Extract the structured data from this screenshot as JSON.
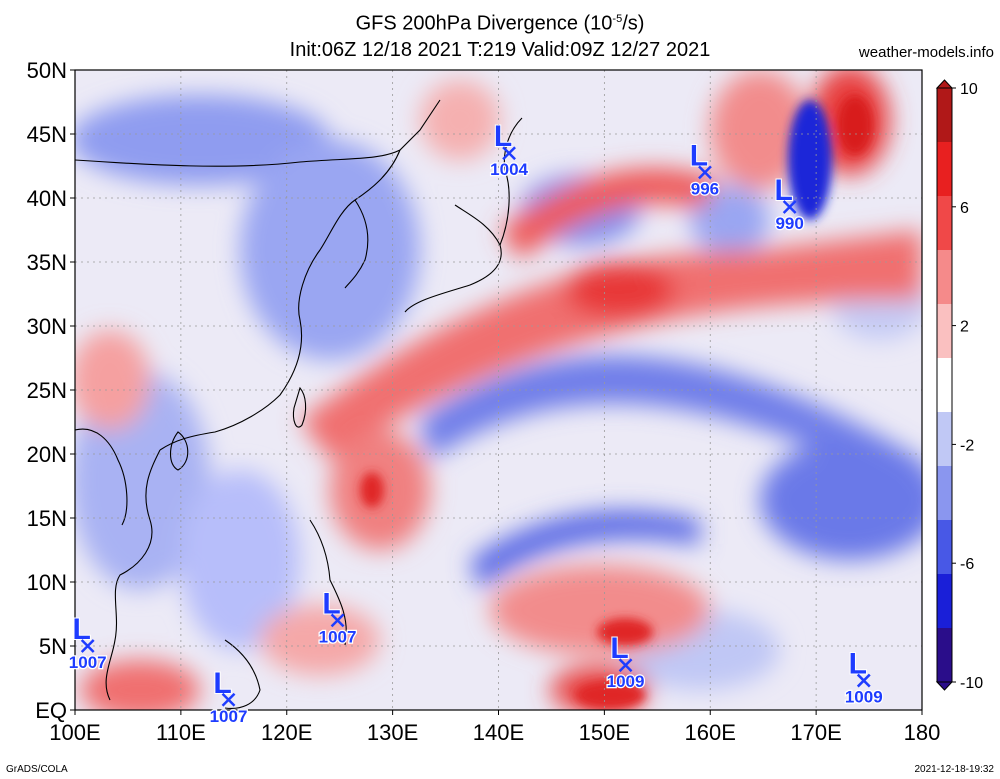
{
  "title": {
    "line1_prefix": "GFS 200hPa Divergence (10",
    "line1_exp": "-5",
    "line1_suffix": "/s)",
    "line2": "Init:06Z 12/18 2021 T:219 Valid:09Z 12/27 2021"
  },
  "site": "weather-models.info",
  "footer": {
    "left": "GrADS/COLA",
    "right": "2021-12-18-19:32"
  },
  "lat_labels": [
    "50N",
    "45N",
    "40N",
    "35N",
    "30N",
    "25N",
    "20N",
    "15N",
    "10N",
    "5N",
    "EQ"
  ],
  "lon_labels": [
    "100E",
    "110E",
    "120E",
    "130E",
    "140E",
    "150E",
    "160E",
    "170E",
    "180"
  ],
  "colorbar": {
    "labels": [
      "10",
      "6",
      "2",
      "-2",
      "-6",
      "-10"
    ],
    "colors": [
      "#b01818",
      "#e82020",
      "#f04848",
      "#f58a8a",
      "#fac0c0",
      "#ffffff",
      "#c0c8f5",
      "#8a96ef",
      "#4858e6",
      "#1a1fd8",
      "#2a0d8a"
    ]
  },
  "lows": [
    {
      "label": "L",
      "pressure": "1004",
      "lon": 141.0,
      "lat": 43.5
    },
    {
      "label": "L",
      "pressure": "996",
      "lon": 159.5,
      "lat": 42.0
    },
    {
      "label": "L",
      "pressure": "990",
      "lon": 167.5,
      "lat": 39.3
    },
    {
      "label": "L",
      "pressure": "1007",
      "lon": 124.8,
      "lat": 7.0
    },
    {
      "label": "L",
      "pressure": "1007",
      "lon": 101.2,
      "lat": 5.0
    },
    {
      "label": "L",
      "pressure": "1007",
      "lon": 114.5,
      "lat": 0.8
    },
    {
      "label": "L",
      "pressure": "1009",
      "lon": 152.0,
      "lat": 3.5
    },
    {
      "label": "L",
      "pressure": "1009",
      "lon": 174.5,
      "lat": 2.3
    }
  ],
  "marker_color": "#1e3cff"
}
